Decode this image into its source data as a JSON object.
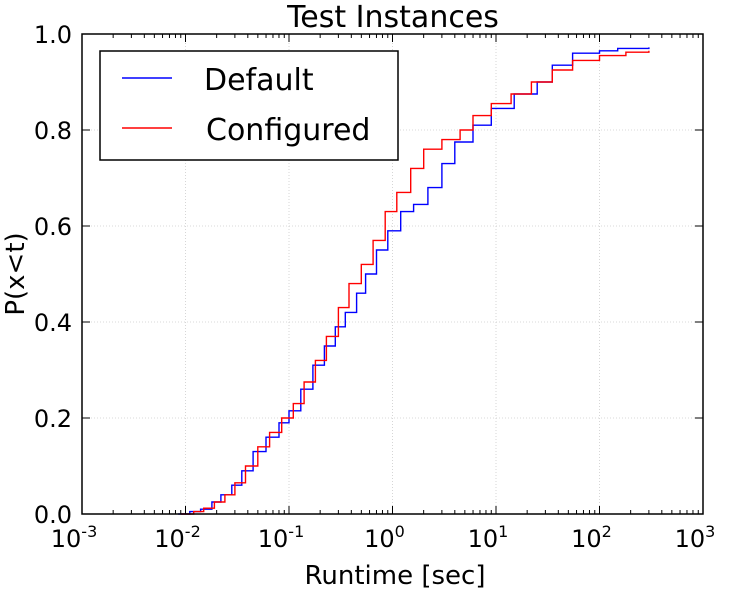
{
  "chart_data": {
    "type": "line",
    "title": "Test Instances",
    "xlabel": "Runtime [sec]",
    "ylabel": "P(x<t)",
    "xscale": "log",
    "xlim": [
      0.001,
      1000
    ],
    "ylim": [
      0,
      1.0
    ],
    "grid": true,
    "legend_position": "top-left",
    "x_ticks": [
      {
        "base": "10",
        "exp": "-3",
        "value": 0.001
      },
      {
        "base": "10",
        "exp": "-2",
        "value": 0.01
      },
      {
        "base": "10",
        "exp": "-1",
        "value": 0.1
      },
      {
        "base": "10",
        "exp": "0",
        "value": 1
      },
      {
        "base": "10",
        "exp": "1",
        "value": 10
      },
      {
        "base": "10",
        "exp": "2",
        "value": 100
      },
      {
        "base": "10",
        "exp": "3",
        "value": 1000
      }
    ],
    "y_ticks": [
      "0.0",
      "0.2",
      "0.4",
      "0.6",
      "0.8",
      "1.0"
    ],
    "series": [
      {
        "name": "Default",
        "color": "#0000ff",
        "points": [
          [
            0.0085,
            0.0
          ],
          [
            0.011,
            0.005
          ],
          [
            0.014,
            0.01
          ],
          [
            0.018,
            0.025
          ],
          [
            0.022,
            0.04
          ],
          [
            0.028,
            0.06
          ],
          [
            0.035,
            0.09
          ],
          [
            0.045,
            0.13
          ],
          [
            0.06,
            0.16
          ],
          [
            0.08,
            0.19
          ],
          [
            0.1,
            0.215
          ],
          [
            0.13,
            0.26
          ],
          [
            0.17,
            0.31
          ],
          [
            0.22,
            0.35
          ],
          [
            0.28,
            0.39
          ],
          [
            0.35,
            0.42
          ],
          [
            0.45,
            0.46
          ],
          [
            0.55,
            0.5
          ],
          [
            0.7,
            0.55
          ],
          [
            0.9,
            0.59
          ],
          [
            1.2,
            0.63
          ],
          [
            1.6,
            0.645
          ],
          [
            2.2,
            0.68
          ],
          [
            3.0,
            0.73
          ],
          [
            4.0,
            0.775
          ],
          [
            6.0,
            0.81
          ],
          [
            9.0,
            0.845
          ],
          [
            15.0,
            0.875
          ],
          [
            25.0,
            0.9
          ],
          [
            35.0,
            0.935
          ],
          [
            55.0,
            0.96
          ],
          [
            100.0,
            0.965
          ],
          [
            150.0,
            0.97
          ],
          [
            300.0,
            0.972
          ]
        ]
      },
      {
        "name": "Configured",
        "color": "#ff0000",
        "points": [
          [
            0.009,
            0.0
          ],
          [
            0.012,
            0.005
          ],
          [
            0.015,
            0.012
          ],
          [
            0.019,
            0.025
          ],
          [
            0.024,
            0.04
          ],
          [
            0.03,
            0.065
          ],
          [
            0.038,
            0.1
          ],
          [
            0.05,
            0.14
          ],
          [
            0.065,
            0.17
          ],
          [
            0.085,
            0.2
          ],
          [
            0.11,
            0.23
          ],
          [
            0.14,
            0.275
          ],
          [
            0.18,
            0.32
          ],
          [
            0.23,
            0.37
          ],
          [
            0.3,
            0.43
          ],
          [
            0.38,
            0.48
          ],
          [
            0.5,
            0.52
          ],
          [
            0.65,
            0.57
          ],
          [
            0.85,
            0.63
          ],
          [
            1.1,
            0.67
          ],
          [
            1.5,
            0.72
          ],
          [
            2.0,
            0.76
          ],
          [
            3.0,
            0.78
          ],
          [
            4.5,
            0.8
          ],
          [
            6.0,
            0.83
          ],
          [
            9.0,
            0.855
          ],
          [
            14.0,
            0.875
          ],
          [
            22.0,
            0.9
          ],
          [
            35.0,
            0.925
          ],
          [
            55.0,
            0.945
          ],
          [
            100.0,
            0.955
          ],
          [
            180.0,
            0.962
          ],
          [
            300.0,
            0.965
          ]
        ]
      }
    ]
  }
}
